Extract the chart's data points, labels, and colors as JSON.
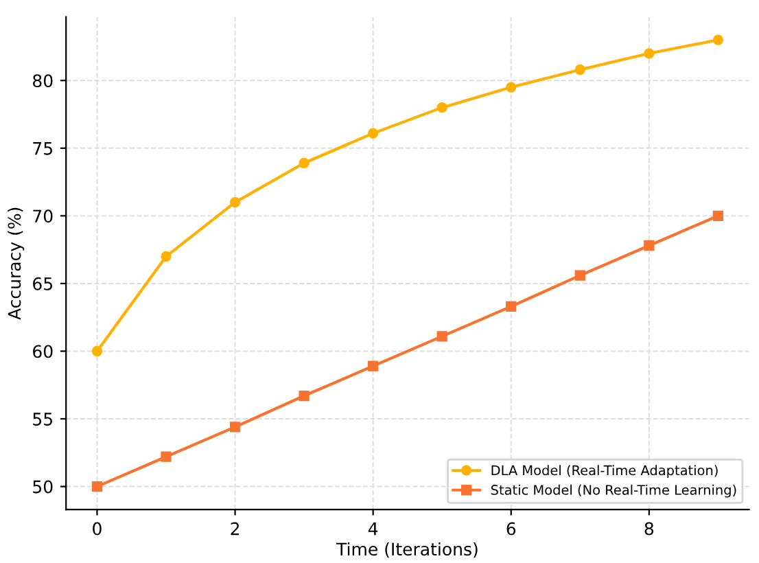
{
  "chart_data": {
    "type": "line",
    "xlabel": "Time (Iterations)",
    "ylabel": "Accuracy (%)",
    "x": [
      0,
      1,
      2,
      3,
      4,
      5,
      6,
      7,
      8,
      9
    ],
    "series": [
      {
        "name": "DLA Model (Real-Time Adaptation)",
        "color": "#ffb000",
        "marker": "circle",
        "values": [
          60,
          67,
          71,
          73.9,
          76.1,
          78,
          79.5,
          80.8,
          82,
          83
        ]
      },
      {
        "name": "Static Model (No Real-Time Learning)",
        "color": "#f97330",
        "marker": "square",
        "values": [
          50,
          52.2,
          54.4,
          56.7,
          58.9,
          61.1,
          63.3,
          65.6,
          67.8,
          70
        ]
      }
    ],
    "xlim": [
      -0.45,
      9.45
    ],
    "xticks": [
      0,
      2,
      4,
      6,
      8
    ],
    "ylim": [
      48.3,
      84.7
    ],
    "yticks": [
      50,
      55,
      60,
      65,
      70,
      75,
      80
    ],
    "grid": true,
    "legend": "bottom right"
  }
}
